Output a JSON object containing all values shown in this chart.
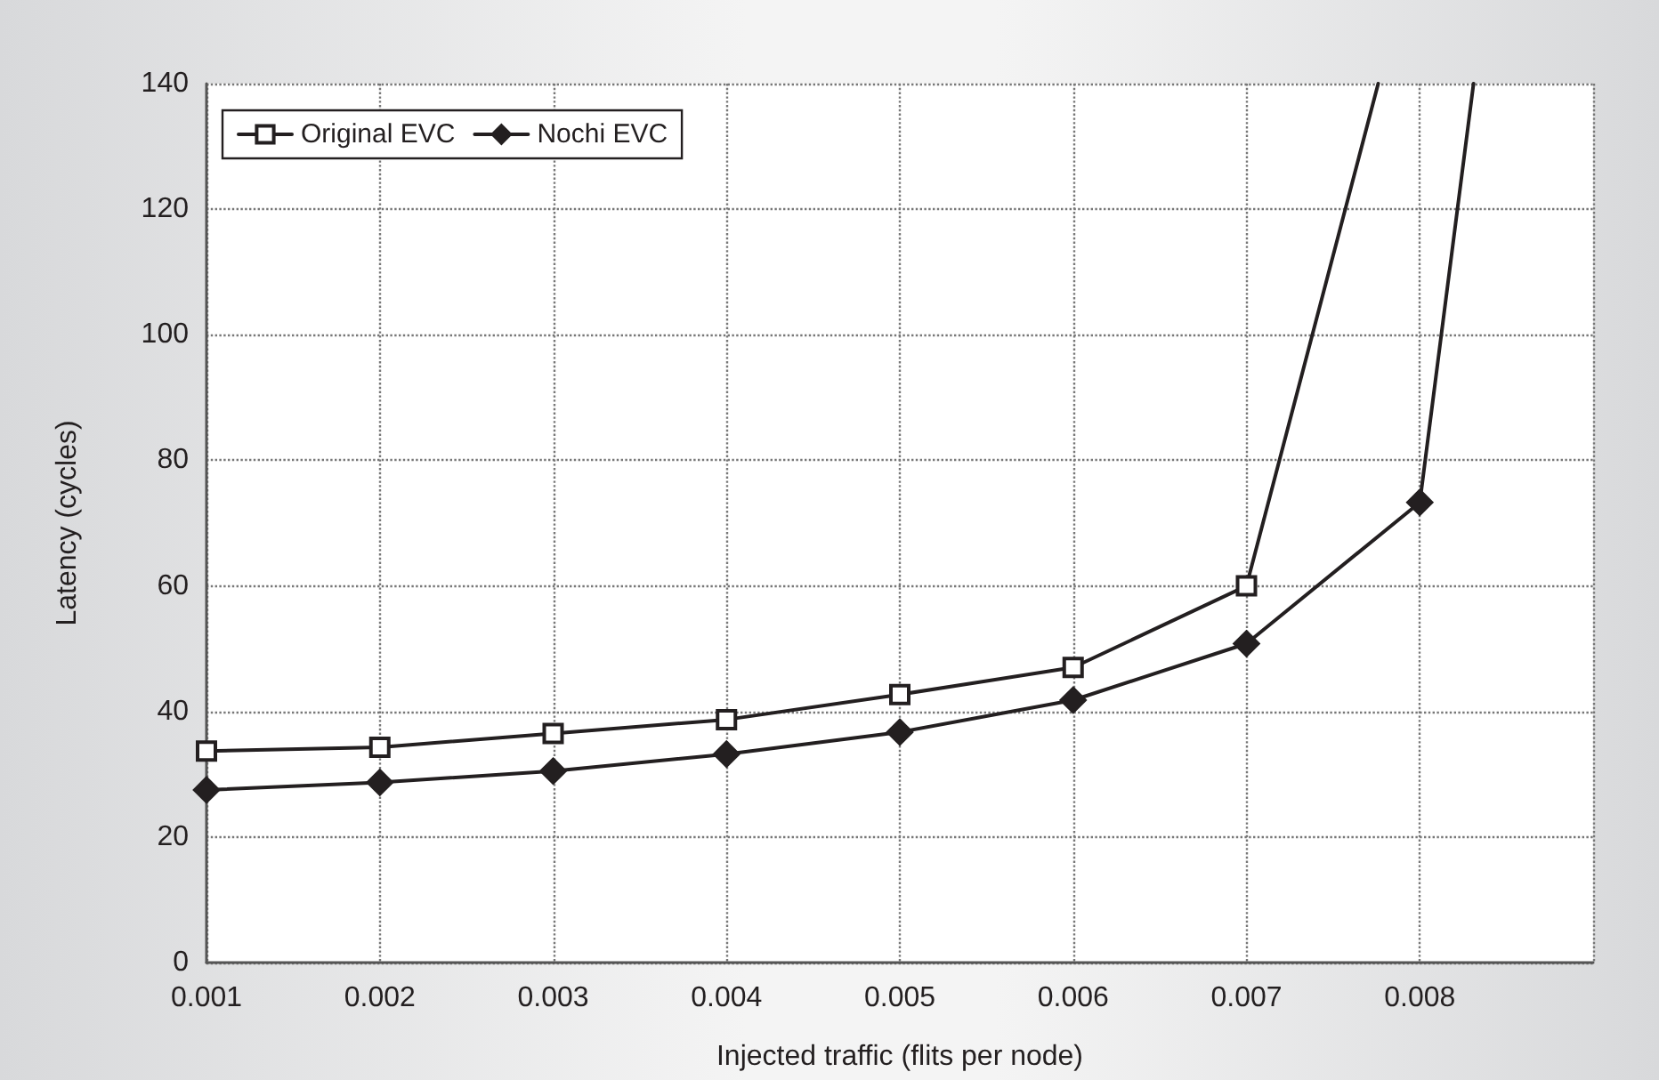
{
  "chart_data": {
    "type": "line",
    "xlabel": "Injected traffic (flits per node)",
    "ylabel": "Latency (cycles)",
    "xlim": [
      0.001,
      0.009
    ],
    "xticks": [
      0.001,
      0.002,
      0.003,
      0.004,
      0.005,
      0.006,
      0.007,
      0.008,
      {
        "value": 0.009,
        "label": null
      }
    ],
    "ylim": [
      0,
      140
    ],
    "yticks": [
      0,
      20,
      40,
      60,
      80,
      100,
      120,
      140
    ],
    "grid": true,
    "legend": "top left",
    "series": [
      {
        "name": "Original EVC",
        "color": "#231f20",
        "marker": "square",
        "x": [
          0.001,
          0.002,
          0.003,
          0.004,
          0.005,
          0.006,
          0.007,
          0.00776
        ],
        "values": [
          33.7,
          34.3,
          36.5,
          38.7,
          42.7,
          47,
          60,
          140
        ]
      },
      {
        "name": "Nochi EVC",
        "color": "#231f20",
        "marker": "diamond",
        "x": [
          0.001,
          0.002,
          0.003,
          0.004,
          0.005,
          0.006,
          0.007,
          0.008,
          0.00831
        ],
        "values": [
          27.5,
          28.7,
          30.5,
          33.2,
          36.7,
          41.8,
          50.8,
          73.3,
          140
        ]
      }
    ]
  }
}
